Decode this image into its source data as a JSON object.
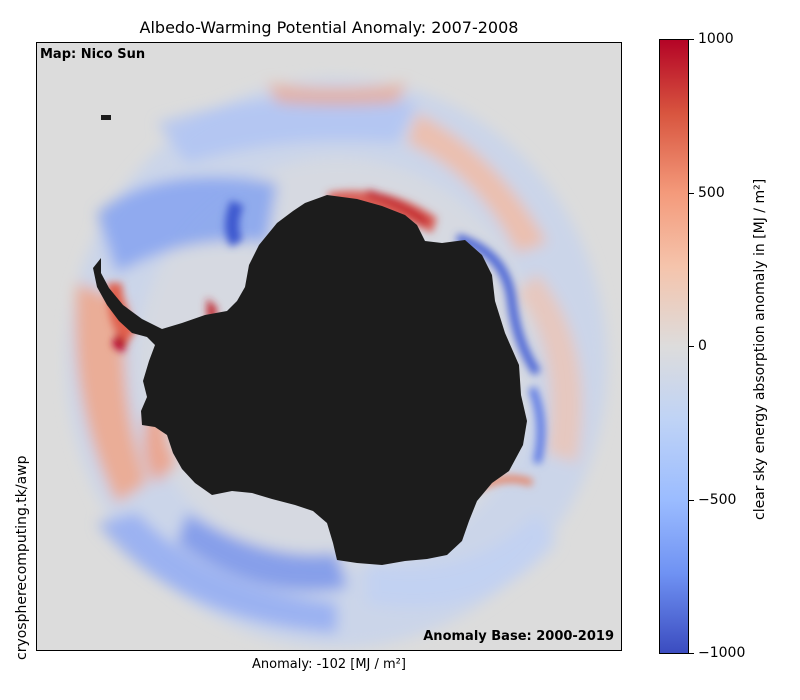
{
  "title": "Albedo-Warming Potential Anomaly: 2007-2008",
  "credit": "Map: Nico Sun",
  "anomaly_base": "Anomaly Base: 2000-2019",
  "xlabel": "Anomaly: -102 [MJ / m²]",
  "website": "cryospherecomputing.tk/awp",
  "colorbar": {
    "label": "clear sky energy absorption anomaly in [MJ / m²]",
    "colormap": "coolwarm",
    "min": -1000,
    "max": 1000,
    "ticks": [
      "1000",
      "500",
      "0",
      "−500",
      "−1000"
    ]
  },
  "colors": {
    "land": "#1c1c1c",
    "background": "#dcdcdc",
    "max": "#b40426",
    "min": "#3b4cc0"
  }
}
